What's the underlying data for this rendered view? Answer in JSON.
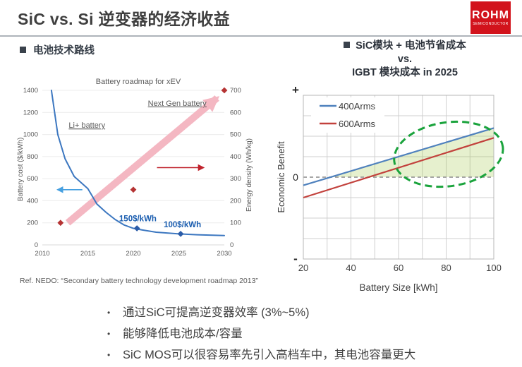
{
  "header": {
    "title": "SiC vs. Si 逆变器的经济收益",
    "logo": {
      "brand": "ROHM",
      "subtitle": "SEMICONDUCTOR",
      "color": "#d2131c"
    }
  },
  "left_panel": {
    "heading": "电池技术路线",
    "reference": "Ref. NEDO:  “Secondary battery technology development roadmap 2013”"
  },
  "right_panel": {
    "heading_line1": "SiC模块 + 电池节省成本",
    "heading_line2": "vs.",
    "heading_line3": "IGBT 模块成本 in 2025"
  },
  "bullets": [
    "通过SiC可提高逆变器效率 (3%~5%)",
    "能够降低电池成本/容量",
    "SiC MOS可以很容易率先引入高档车中，其电池容量更大"
  ],
  "chart_data": [
    {
      "id": "battery_roadmap",
      "type": "line",
      "title": "Battery roadmap for xEV",
      "ylabel_left": "Battery cost ($/kWh)",
      "ylabel_right": "Energy density (Wh/kg)",
      "xlim": [
        2010,
        2030
      ],
      "x_ticks": [
        2010,
        2015,
        2020,
        2025,
        2030
      ],
      "ylim_left": [
        0,
        1400
      ],
      "y_ticks_left": [
        0,
        200,
        400,
        600,
        800,
        1000,
        1200,
        1400
      ],
      "ylim_right": [
        0,
        700
      ],
      "y_ticks_right": [
        0,
        100,
        200,
        300,
        400,
        500,
        600,
        700
      ],
      "grid": true,
      "series": [
        {
          "name": "Li+ battery cost",
          "axis": "left",
          "kind": "curve",
          "color": "#3c77c0",
          "x": [
            2011,
            2011.7,
            2012.5,
            2013.5,
            2015,
            2016,
            2017,
            2018,
            2019,
            2020,
            2021,
            2022.5,
            2025,
            2027,
            2030
          ],
          "y": [
            1400,
            1000,
            780,
            620,
            510,
            370,
            295,
            230,
            180,
            150,
            135,
            115,
            100,
            92,
            85
          ]
        },
        {
          "name": "Battery cost milestones",
          "axis": "left",
          "kind": "points",
          "marker": "diamond",
          "color": "#2b5ca8",
          "x": [
            2020.4,
            2025.2
          ],
          "y": [
            150,
            100
          ]
        },
        {
          "name": "Energy density roadmap",
          "axis": "right",
          "kind": "points",
          "marker": "diamond",
          "color": "#b53333",
          "x": [
            2012,
            2020,
            2030
          ],
          "y": [
            100,
            250,
            700
          ]
        }
      ],
      "trend_arrow": {
        "axis": "right",
        "from": [
          2012.8,
          100
        ],
        "to": [
          2029.2,
          665
        ],
        "color": "#f4b7c2",
        "width": 10
      },
      "axis_arrows": [
        {
          "axis": "left",
          "y": 500,
          "x_tail": 2014.4,
          "x_head": 2011.7,
          "color": "#47a0e0"
        },
        {
          "axis": "right",
          "y": 350,
          "x_tail": 2022.6,
          "x_head": 2027.7,
          "color": "#c0222c"
        }
      ],
      "annotations": [
        {
          "text": "Li+ battery",
          "axis": "left",
          "x": 2012.9,
          "y": 1060,
          "underline": true,
          "bold": false,
          "color": "#595959",
          "anchor": "start",
          "size": 11
        },
        {
          "text": "Next Gen battery",
          "axis": "right",
          "x": 2021.6,
          "y": 630,
          "underline": true,
          "bold": false,
          "color": "#595959",
          "anchor": "start",
          "size": 11
        },
        {
          "text": "150$/kWh",
          "axis": "left",
          "x": 2020.5,
          "y": 215,
          "underline": false,
          "bold": true,
          "color": "#1b5eb0",
          "anchor": "middle",
          "size": 11.5
        },
        {
          "text": "100$/kWh",
          "axis": "left",
          "x": 2025.4,
          "y": 160,
          "underline": false,
          "bold": true,
          "color": "#1b5eb0",
          "anchor": "middle",
          "size": 11.5
        }
      ]
    },
    {
      "id": "economic_benefit",
      "type": "line",
      "xlabel": "Battery Size [kWh]",
      "ylabel": "Economic Benefit",
      "xlim": [
        20,
        100
      ],
      "x_ticks": [
        20,
        40,
        60,
        80,
        100
      ],
      "x_grid_step": 10,
      "ylim": [
        -1,
        1
      ],
      "y_grid_step": 0.25,
      "y_axis_marks": {
        "top": "+",
        "zero": "0",
        "bottom": "-"
      },
      "series": [
        {
          "name": "400Arms",
          "color": "#4f81bd",
          "x": [
            20,
            100
          ],
          "y": [
            -0.1,
            0.6
          ]
        },
        {
          "name": "600Arms",
          "color": "#c2413c",
          "x": [
            20,
            100
          ],
          "y": [
            -0.25,
            0.48
          ]
        }
      ],
      "legend": {
        "entries": [
          "400Arms",
          "600Arms"
        ],
        "position": "top-left"
      },
      "zero_line": {
        "style": "dashed",
        "color": "#8a8a8a"
      },
      "benefit_region": {
        "between": [
          "400Arms",
          "zero"
        ],
        "fill": "#9bc53d",
        "opacity": 0.25
      },
      "highlight_ellipse": {
        "cx_kwh": 81,
        "cy": 0.28,
        "rx_kwh": 23,
        "ry": 0.39,
        "rotate_deg": -8,
        "color": "#1aa33c"
      }
    }
  ]
}
